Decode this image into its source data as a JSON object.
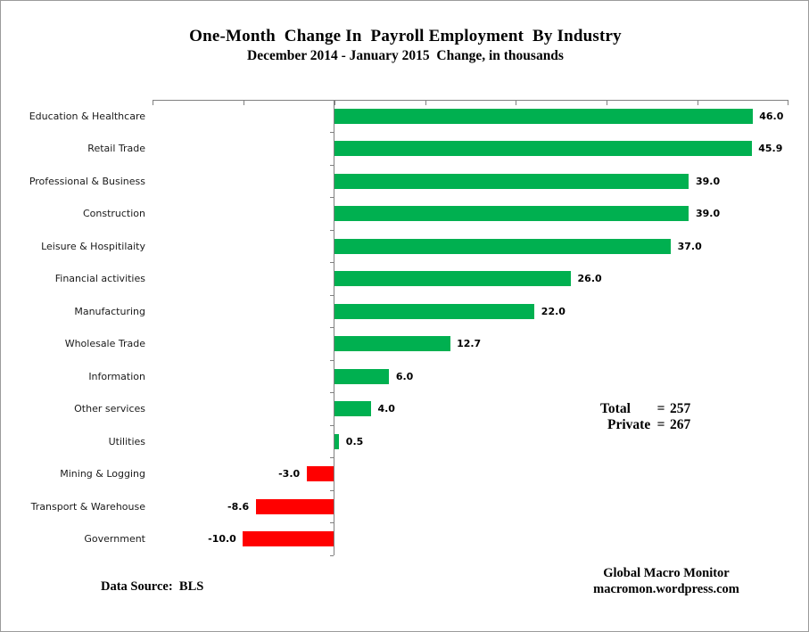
{
  "chart_data": {
    "type": "bar",
    "orientation": "horizontal",
    "title": "One-Month  Change In  Payroll Employment  By Industry",
    "subtitle": "December 2014 - January 2015  Change, in thousands",
    "categories": [
      "Education & Healthcare",
      "Retail Trade",
      "Professional & Business",
      "Construction",
      "Leisure & Hospitilaity",
      "Financial activities",
      "Manufacturing",
      "Wholesale Trade",
      "Information",
      "Other services",
      "Utilities",
      "Mining & Logging",
      "Transport & Warehouse",
      "Government"
    ],
    "values": [
      46.0,
      45.9,
      39.0,
      39.0,
      37.0,
      26.0,
      22.0,
      12.7,
      6.0,
      4.0,
      0.5,
      -3.0,
      -8.6,
      -10.0
    ],
    "value_labels": [
      "46.0",
      "45.9",
      "39.0",
      "39.0",
      "37.0",
      "26.0",
      "22.0",
      "12.7",
      "6.0",
      "4.0",
      "0.5",
      "-3.0",
      "-8.6",
      "-10.0"
    ],
    "xlim": [
      -20,
      50
    ],
    "tick_interval": 10,
    "grid": false,
    "legend": "none",
    "colors": {
      "positive": "#00B050",
      "negative": "#FF0000",
      "axis": "#808080"
    }
  },
  "annotations": {
    "totals": [
      {
        "label": "Total",
        "eq": "=",
        "value": "257"
      },
      {
        "label": "Private",
        "eq": "=",
        "value": "267"
      }
    ]
  },
  "footer": {
    "source": "Data Source:  BLS",
    "credit_line1": "Global Macro Monitor",
    "credit_line2": "macromon.wordpress.com"
  }
}
